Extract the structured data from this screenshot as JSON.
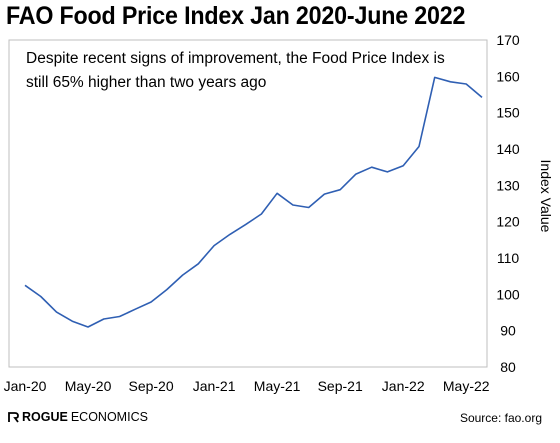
{
  "chart_data": {
    "type": "line",
    "title": "FAO Food Price Index Jan 2020-June 2022",
    "annotation": [
      "Despite recent signs of improvement, the Food Price Index is",
      "still 65% higher than two years ago"
    ],
    "ylabel": "Index Value",
    "xlabel": "",
    "ylim": [
      80,
      170
    ],
    "yticks": [
      80,
      90,
      100,
      110,
      120,
      130,
      140,
      150,
      160,
      170
    ],
    "x_tick_labels": [
      "Jan-20",
      "May-20",
      "Sep-20",
      "Jan-21",
      "May-21",
      "Sep-21",
      "Jan-22",
      "May-22"
    ],
    "x": [
      "2020-01",
      "2020-02",
      "2020-03",
      "2020-04",
      "2020-05",
      "2020-06",
      "2020-07",
      "2020-08",
      "2020-09",
      "2020-10",
      "2020-11",
      "2020-12",
      "2021-01",
      "2021-02",
      "2021-03",
      "2021-04",
      "2021-05",
      "2021-06",
      "2021-07",
      "2021-08",
      "2021-09",
      "2021-10",
      "2021-11",
      "2021-12",
      "2022-01",
      "2022-02",
      "2022-03",
      "2022-04",
      "2022-05",
      "2022-06"
    ],
    "series": [
      {
        "values": [
          102.5,
          99.4,
          95.1,
          92.6,
          91.0,
          93.2,
          93.9,
          95.9,
          97.9,
          101.3,
          105.3,
          108.4,
          113.4,
          116.5,
          119.2,
          122.1,
          127.8,
          124.6,
          123.9,
          127.6,
          128.8,
          133.1,
          135.0,
          133.7,
          135.4,
          140.7,
          159.7,
          158.5,
          157.9,
          154.2
        ],
        "color": "#2f5fb3"
      }
    ],
    "grid": false,
    "legend": "none"
  },
  "footer": {
    "brand_bold": "ROGUE",
    "brand_light": "ECONOMICS",
    "source": "Source: fao.org"
  }
}
